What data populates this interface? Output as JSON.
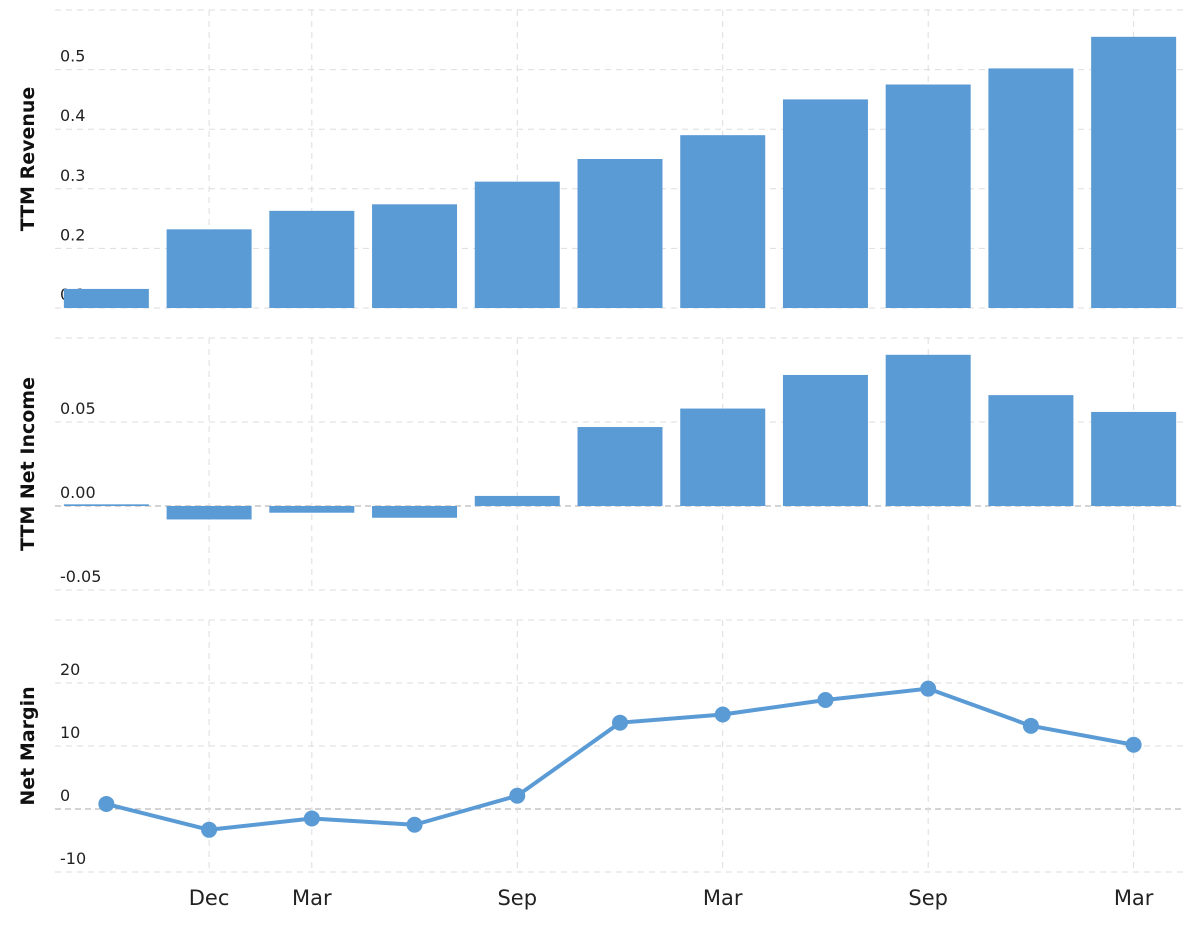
{
  "colors": {
    "bar": "#5b9bd5",
    "line": "#5b9bd5",
    "grid": "#dddddd"
  },
  "chart_data": [
    {
      "type": "bar",
      "ylabel": "TTM Revenue",
      "y_ticks": [
        "0.1",
        "0.2",
        "0.3",
        "0.4",
        "0.5"
      ],
      "ylim": [
        0.1,
        0.6
      ],
      "values": [
        0.132,
        0.232,
        0.263,
        0.274,
        0.312,
        0.35,
        0.39,
        0.45,
        0.475,
        0.502,
        0.555
      ]
    },
    {
      "type": "bar",
      "ylabel": "TTM Net Income",
      "y_ticks": [
        "-0.05",
        "0.00",
        "0.05"
      ],
      "ylim": [
        -0.05,
        0.1
      ],
      "values": [
        0.001,
        -0.008,
        -0.004,
        -0.007,
        0.006,
        0.047,
        0.058,
        0.078,
        0.09,
        0.066,
        0.056
      ]
    },
    {
      "type": "line",
      "ylabel": "Net Margin",
      "y_ticks": [
        "-10",
        "0",
        "10",
        "20"
      ],
      "ylim": [
        -10,
        30
      ],
      "values": [
        0.8,
        -3.3,
        -1.5,
        -2.5,
        2.1,
        13.7,
        15.0,
        17.3,
        19.1,
        13.2,
        10.2
      ]
    }
  ],
  "x_ticks": [
    "Dec",
    "Mar",
    "Sep",
    "Mar",
    "Sep",
    "Mar"
  ],
  "x_tick_slots": [
    1,
    2,
    4,
    6,
    8,
    10
  ]
}
